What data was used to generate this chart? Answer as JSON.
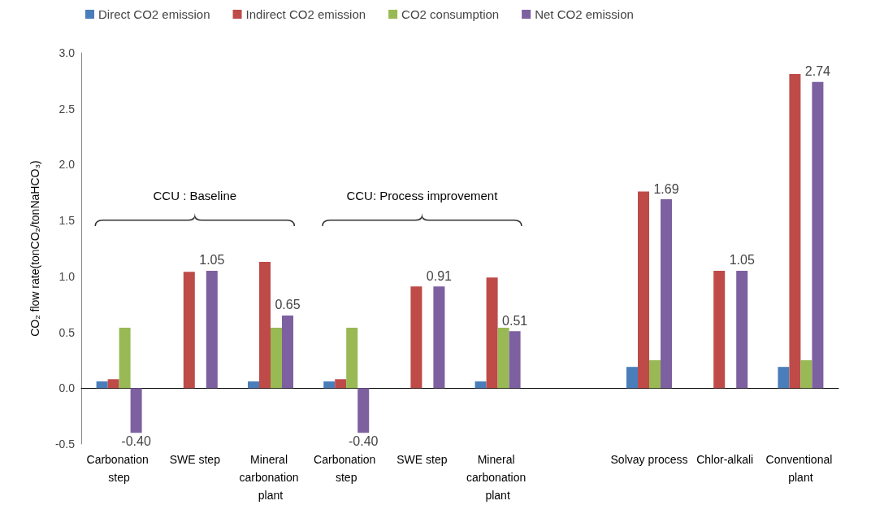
{
  "chart_data": {
    "type": "bar",
    "ylabel": "CO₂ flow rate(tonCO₂/tonNaHCO₃)",
    "categories": [
      "Carbonation step",
      "SWE step",
      "Mineral carbonation plant",
      "Carbonation step",
      "SWE step",
      "Mineral carbonation plant",
      null,
      "Solvay process",
      "Chlor-alkali",
      "Conventional plant"
    ],
    "series": [
      {
        "name": "Direct CO2 emission",
        "color": "#4a7ebb",
        "values": [
          0.06,
          0,
          0.06,
          0.06,
          0,
          0.06,
          null,
          0.19,
          0,
          0.19
        ]
      },
      {
        "name": "Indirect CO2 emission",
        "color": "#be4b48",
        "values": [
          0.08,
          1.04,
          1.13,
          0.08,
          0.91,
          0.99,
          null,
          1.76,
          1.05,
          2.81
        ]
      },
      {
        "name": "CO2 consumption",
        "color": "#98b954",
        "values": [
          0.54,
          0,
          0.54,
          0.54,
          0,
          0.54,
          null,
          0.25,
          0,
          0.25
        ]
      },
      {
        "name": "Net CO2 emission",
        "color": "#7d60a0",
        "values": [
          -0.4,
          1.05,
          0.65,
          -0.4,
          0.91,
          0.51,
          null,
          1.69,
          1.05,
          2.74
        ],
        "value_labels": [
          "-0.40",
          "1.05",
          "0.65",
          "-0.40",
          "0.91",
          "0.51",
          null,
          "1.69",
          "1.05",
          "2.74"
        ]
      }
    ],
    "ylim": [
      -0.5,
      3.0
    ],
    "yticks": [
      {
        "value": -0.5,
        "label": "-0.5"
      },
      {
        "value": 0,
        "label": "0.0"
      },
      {
        "value": 0.5,
        "label": "0.5"
      },
      {
        "value": 1,
        "label": "1.0"
      },
      {
        "value": 1.5,
        "label": "1.5"
      },
      {
        "value": 2,
        "label": "2.0"
      },
      {
        "value": 2.5,
        "label": "2.5"
      },
      {
        "value": 3,
        "label": "3.0"
      }
    ],
    "annotations": [
      "CCU : Baseline",
      "CCU: Process improvement"
    ],
    "legend": "top"
  }
}
